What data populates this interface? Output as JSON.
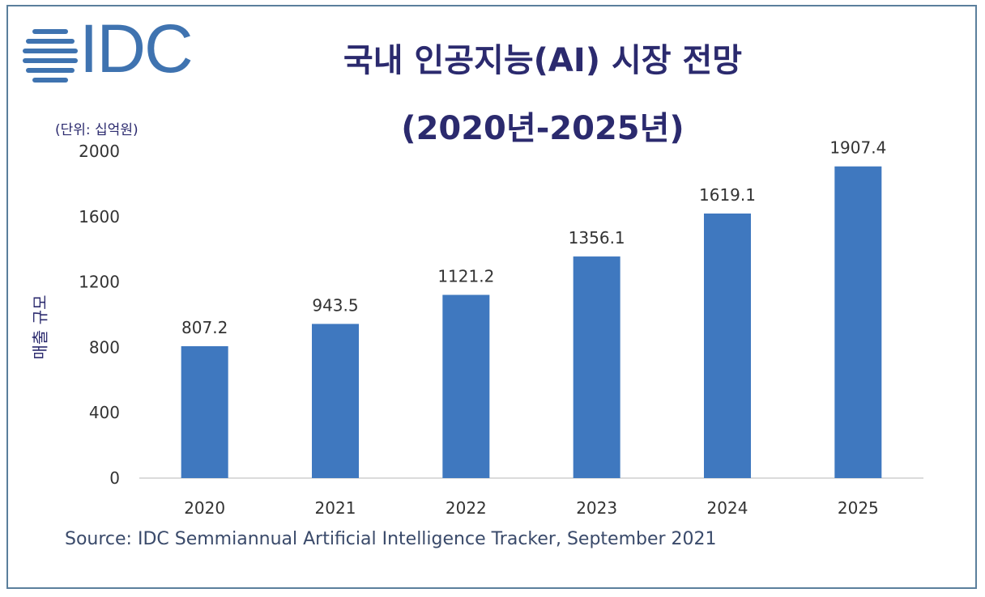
{
  "logo": {
    "text": "IDC"
  },
  "title": {
    "line1": "국내 인공지능(AI) 시장 전망",
    "line2": "(2020년-2025년)"
  },
  "unit_label": "(단위: 십억원)",
  "source": "Source: IDC Semmiannual Artificial Intelligence Tracker, September 2021",
  "colors": {
    "bar": "#3f78bf",
    "title": "#2b2a6e",
    "axis_text": "#333333",
    "logo": "#3f73b0",
    "border": "#5b7f9c"
  },
  "chart_data": {
    "type": "bar",
    "categories": [
      "2020",
      "2021",
      "2022",
      "2023",
      "2024",
      "2025"
    ],
    "values": [
      807.2,
      943.5,
      1121.2,
      1356.1,
      1619.1,
      1907.4
    ],
    "value_labels": [
      "807.2",
      "943.5",
      "1121.2",
      "1356.1",
      "1619.1",
      "1907.4"
    ],
    "title": "국내 인공지능(AI) 시장 전망 (2020년-2025년)",
    "xlabel": "",
    "ylabel": "매출 규모",
    "ylim": [
      0,
      2000
    ],
    "yticks": [
      0,
      400,
      800,
      1200,
      1600,
      2000
    ],
    "ytick_labels": [
      "0",
      "400",
      "800",
      "1200",
      "1600",
      "2000"
    ],
    "grid": false,
    "legend": "none"
  }
}
